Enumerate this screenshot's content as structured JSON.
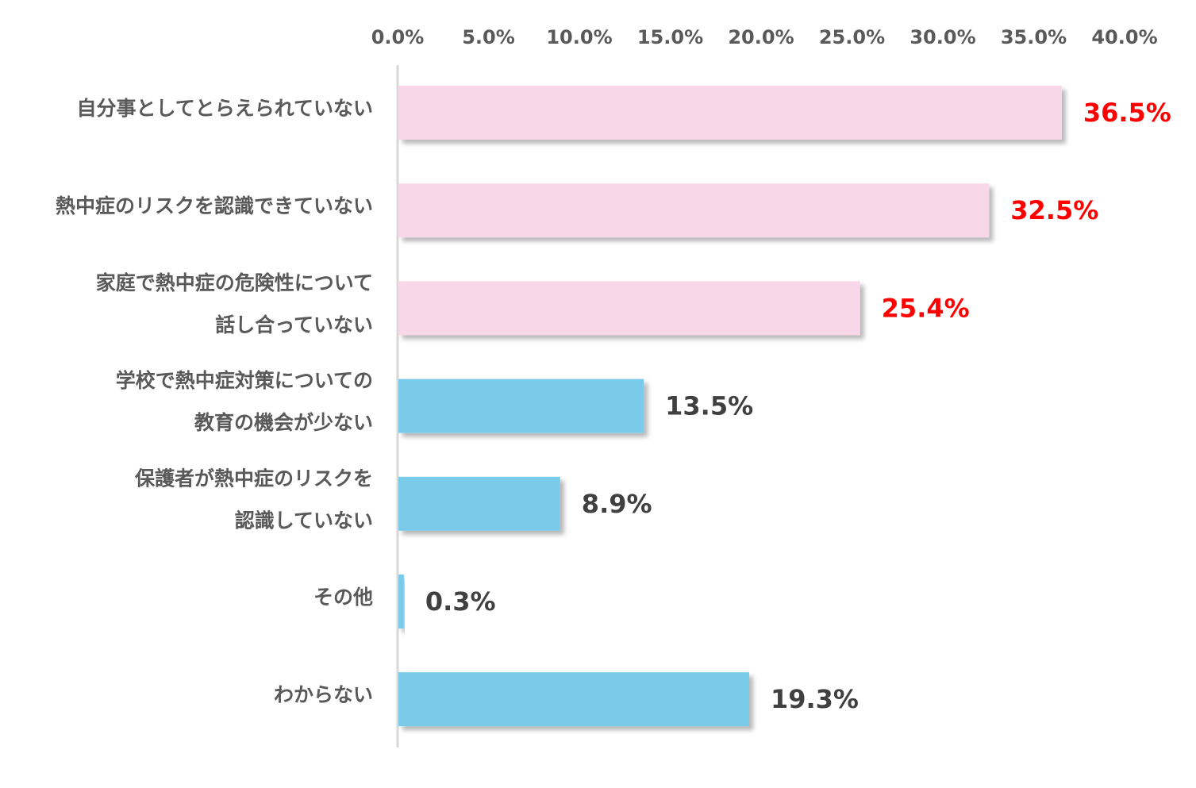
{
  "chart_data": {
    "type": "bar",
    "orientation": "horizontal",
    "xlim": [
      0,
      40
    ],
    "x_ticks": [
      "0.0%",
      "5.0%",
      "10.0%",
      "15.0%",
      "20.0%",
      "25.0%",
      "30.0%",
      "35.0%",
      "40.0%"
    ],
    "x_axis_position": "top",
    "grid": false,
    "legend": "none",
    "categories": [
      [
        "自分事としてとらえられていない"
      ],
      [
        "熱中症のリスクを認識できていない"
      ],
      [
        "家庭で熱中症の危険性について",
        "話し合っていない"
      ],
      [
        "学校で熱中症対策についての",
        "教育の機会が少ない"
      ],
      [
        "保護者が熱中症のリスクを",
        "認識していない"
      ],
      [
        "その他"
      ],
      [
        "わからない"
      ]
    ],
    "values": [
      36.5,
      32.5,
      25.4,
      13.5,
      8.9,
      0.3,
      19.3
    ],
    "value_labels": [
      "36.5%",
      "32.5%",
      "25.4%",
      "13.5%",
      "8.9%",
      "0.3%",
      "19.3%"
    ],
    "highlighted": [
      true,
      true,
      true,
      false,
      false,
      false,
      false
    ]
  },
  "colors": {
    "highlight_bar": "#F8D7E8",
    "normal_bar": "#7ACBEA",
    "highlight_label": "#FF0000",
    "normal_label": "#404040",
    "axis_line": "#D9D9D9",
    "tick_text": "#595959",
    "category_text": "#595959"
  }
}
